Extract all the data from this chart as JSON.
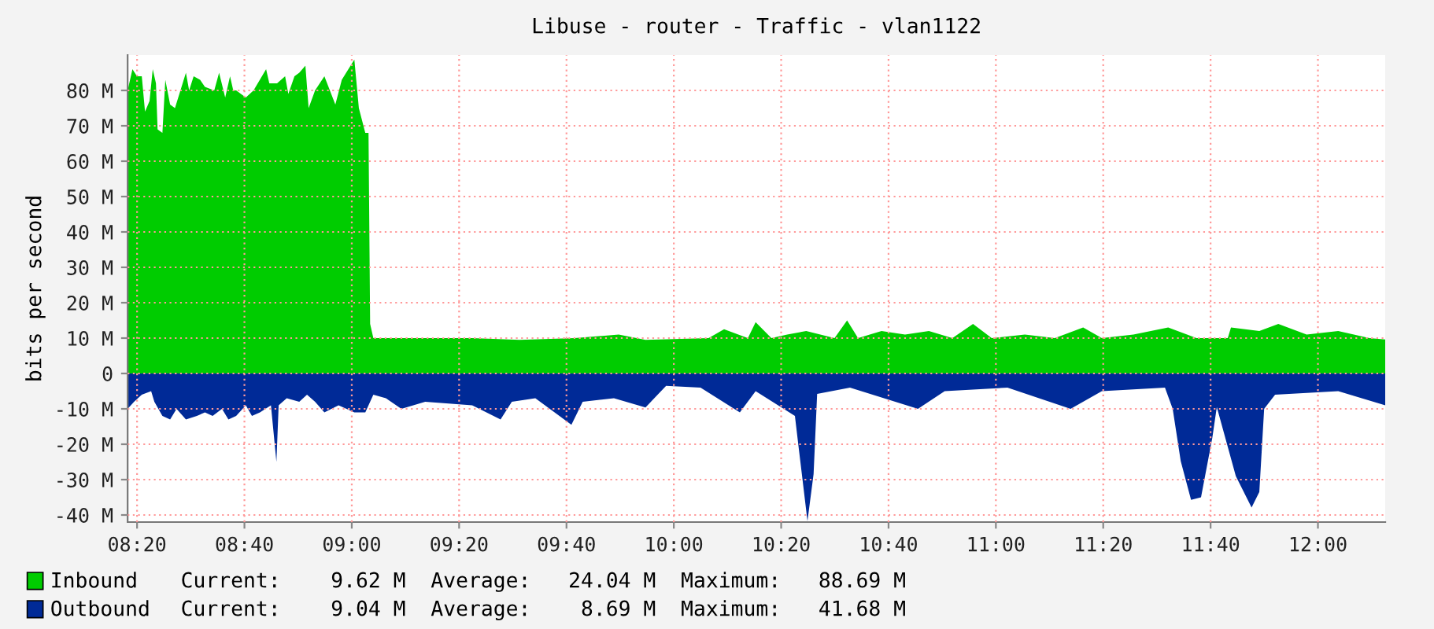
{
  "chart_data": {
    "type": "area",
    "title": "Libuse - router - Traffic - vlan1122",
    "ylabel": "bits per second",
    "xlim": [
      8.304,
      12.209
    ],
    "xticks": [
      {
        "value": 8.3333,
        "label": "08:20"
      },
      {
        "value": 8.6667,
        "label": "08:40"
      },
      {
        "value": 9.0,
        "label": "09:00"
      },
      {
        "value": 9.3333,
        "label": "09:20"
      },
      {
        "value": 9.6667,
        "label": "09:40"
      },
      {
        "value": 10.0,
        "label": "10:00"
      },
      {
        "value": 10.3333,
        "label": "10:20"
      },
      {
        "value": 10.6667,
        "label": "10:40"
      },
      {
        "value": 11.0,
        "label": "11:00"
      },
      {
        "value": 11.3333,
        "label": "11:20"
      },
      {
        "value": 11.6667,
        "label": "11:40"
      },
      {
        "value": 12.0,
        "label": "12:00"
      }
    ],
    "ylim": [
      -42,
      90
    ],
    "yticks": [
      {
        "value": -40,
        "label": "-40 M"
      },
      {
        "value": -30,
        "label": "-30 M"
      },
      {
        "value": -20,
        "label": "-20 M"
      },
      {
        "value": -10,
        "label": "-10 M"
      },
      0,
      {
        "value": 10,
        "label": "10 M"
      },
      {
        "value": 20,
        "label": "20 M"
      },
      {
        "value": 30,
        "label": "30 M"
      },
      {
        "value": 40,
        "label": "40 M"
      },
      {
        "value": 50,
        "label": "50 M"
      },
      {
        "value": 60,
        "label": "60 M"
      },
      {
        "value": 70,
        "label": "70 M"
      },
      {
        "value": 80,
        "label": "80 M"
      }
    ],
    "grid": true,
    "legend": "bottom",
    "annotations": [
      "Current:    9.62 M  Average:   24.04 M  Maximum:   88.69 M",
      "Current:    9.04 M  Average:    8.69 M  Maximum:   41.68 M"
    ],
    "series": [
      {
        "name": "Inbound",
        "color": "#00cc00",
        "x": [
          8.304,
          8.319,
          8.333,
          8.348,
          8.358,
          8.372,
          8.382,
          8.392,
          8.397,
          8.412,
          8.421,
          8.436,
          8.451,
          8.485,
          8.495,
          8.509,
          8.529,
          8.544,
          8.573,
          8.588,
          8.607,
          8.622,
          8.632,
          8.641,
          8.671,
          8.695,
          8.734,
          8.744,
          8.768,
          8.793,
          8.803,
          8.822,
          8.837,
          8.856,
          8.866,
          8.886,
          8.915,
          8.949,
          8.969,
          9.008,
          9.022,
          9.042,
          9.052,
          9.057,
          9.067,
          9.086,
          9.13,
          9.374,
          9.521,
          9.692,
          9.829,
          9.912,
          10.108,
          10.156,
          10.23,
          10.254,
          10.303,
          10.352,
          10.411,
          10.499,
          10.538,
          10.572,
          10.645,
          10.718,
          10.792,
          10.865,
          10.929,
          10.987,
          11.09,
          11.183,
          11.271,
          11.329,
          11.427,
          11.535,
          11.623,
          11.72,
          11.73,
          11.818,
          11.877,
          11.965,
          12.063,
          12.16,
          12.209
        ],
        "values": [
          80,
          86,
          84,
          84,
          74,
          77,
          86,
          82,
          69,
          68,
          83,
          76,
          75,
          85,
          80,
          84,
          83,
          81,
          80,
          85,
          78,
          84,
          80,
          80,
          78,
          80,
          86,
          82,
          82,
          84,
          79,
          84,
          85,
          87,
          75,
          80,
          84,
          76,
          83,
          88.7,
          75,
          68,
          68,
          14,
          10,
          10,
          10,
          10,
          9.5,
          10,
          11,
          9.5,
          10,
          12.5,
          10,
          14.5,
          10,
          11,
          12,
          10,
          15,
          10,
          12,
          11,
          12,
          10,
          14,
          10,
          11,
          10,
          13,
          10,
          11,
          13,
          10,
          10,
          13,
          12,
          14,
          11,
          12,
          10,
          9.6
        ]
      },
      {
        "name": "Outbound",
        "color": "#002a97",
        "x": [
          8.304,
          8.324,
          8.348,
          8.377,
          8.387,
          8.412,
          8.436,
          8.456,
          8.485,
          8.519,
          8.544,
          8.568,
          8.597,
          8.617,
          8.641,
          8.671,
          8.69,
          8.715,
          8.749,
          8.766,
          8.773,
          8.798,
          8.837,
          8.861,
          8.886,
          8.915,
          8.959,
          9.008,
          9.042,
          9.067,
          9.106,
          9.154,
          9.228,
          9.374,
          9.462,
          9.497,
          9.57,
          9.682,
          9.717,
          9.814,
          9.912,
          9.976,
          10.083,
          10.205,
          10.254,
          10.376,
          10.386,
          10.415,
          10.434,
          10.445,
          10.547,
          10.758,
          10.841,
          11.036,
          11.232,
          11.329,
          11.525,
          11.549,
          11.574,
          11.606,
          11.637,
          11.672,
          11.686,
          11.745,
          11.794,
          11.818,
          11.833,
          11.867,
          12.063,
          12.209
        ],
        "values": [
          -10,
          -8,
          -6,
          -5,
          -8,
          -12,
          -13,
          -10,
          -13,
          -12,
          -11,
          -12,
          -10,
          -13,
          -12,
          -9,
          -12,
          -11,
          -9,
          -25,
          -9,
          -7,
          -8,
          -6,
          -8,
          -11,
          -9,
          -11,
          -11,
          -6,
          -7,
          -10,
          -8,
          -9,
          -13,
          -8,
          -7,
          -14.5,
          -8,
          -7,
          -9.6,
          -3.5,
          -4,
          -11,
          -5,
          -12,
          -19.7,
          -41.7,
          -28.4,
          -5.8,
          -4,
          -10,
          -5,
          -4,
          -10,
          -5,
          -4,
          -10,
          -24.8,
          -35.7,
          -35,
          -18.2,
          -9.5,
          -29,
          -37.9,
          -33.5,
          -10,
          -6,
          -5,
          -9
        ]
      }
    ]
  }
}
